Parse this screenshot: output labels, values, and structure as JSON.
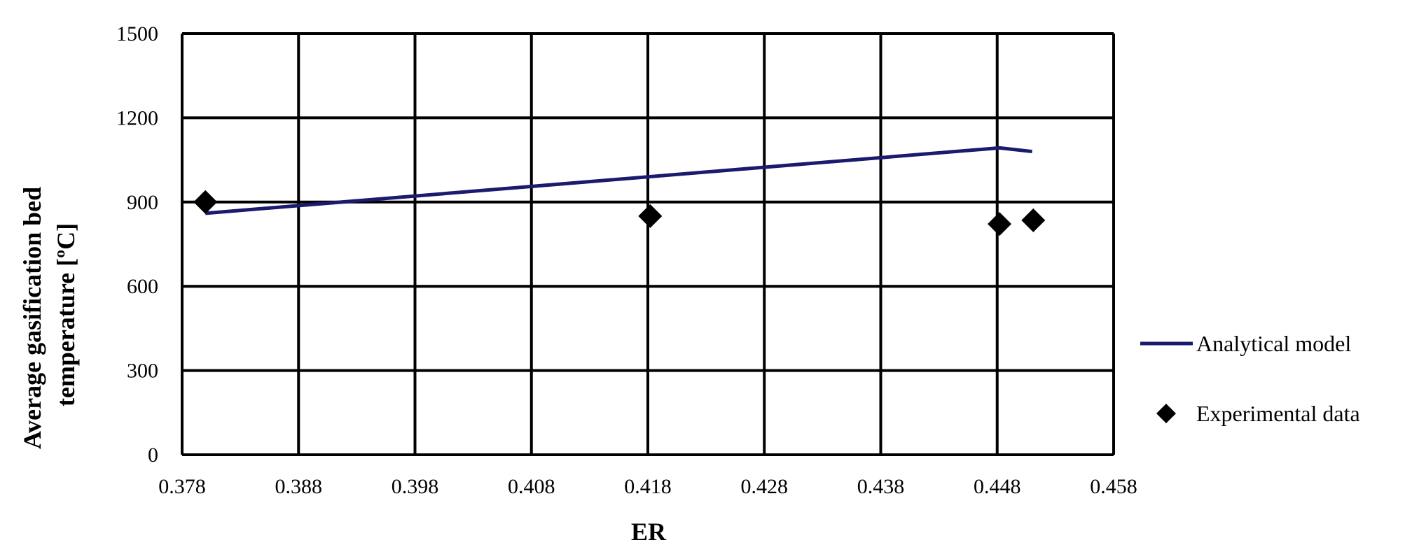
{
  "chart_data": {
    "type": "line",
    "title": "",
    "xlabel": "ER",
    "ylabel_lines": [
      "Average gasification bed",
      "temperature [ºC]"
    ],
    "xlim": [
      0.378,
      0.458
    ],
    "ylim": [
      0,
      1500
    ],
    "x_ticks": [
      0.378,
      0.388,
      0.398,
      0.408,
      0.418,
      0.428,
      0.438,
      0.448,
      0.458
    ],
    "x_tick_labels": [
      "0.378",
      "0.388",
      "0.398",
      "0.408",
      "0.418",
      "0.428",
      "0.438",
      "0.448",
      "0.458"
    ],
    "y_ticks": [
      0,
      300,
      600,
      900,
      1200,
      1500
    ],
    "y_tick_labels": [
      "0",
      "300",
      "600",
      "900",
      "1200",
      "1500"
    ],
    "grid": true,
    "legend_position": "right",
    "series": [
      {
        "name": "Analytical model",
        "kind": "line",
        "color": "#1a1a6e",
        "points": [
          [
            0.38,
            860
          ],
          [
            0.4482,
            1093
          ],
          [
            0.451,
            1080
          ]
        ]
      },
      {
        "name": "Experimental data",
        "kind": "scatter",
        "marker": "diamond",
        "color": "#000000",
        "points": [
          [
            0.38,
            900
          ],
          [
            0.4182,
            850
          ],
          [
            0.4482,
            822
          ],
          [
            0.4511,
            835
          ]
        ]
      }
    ]
  }
}
